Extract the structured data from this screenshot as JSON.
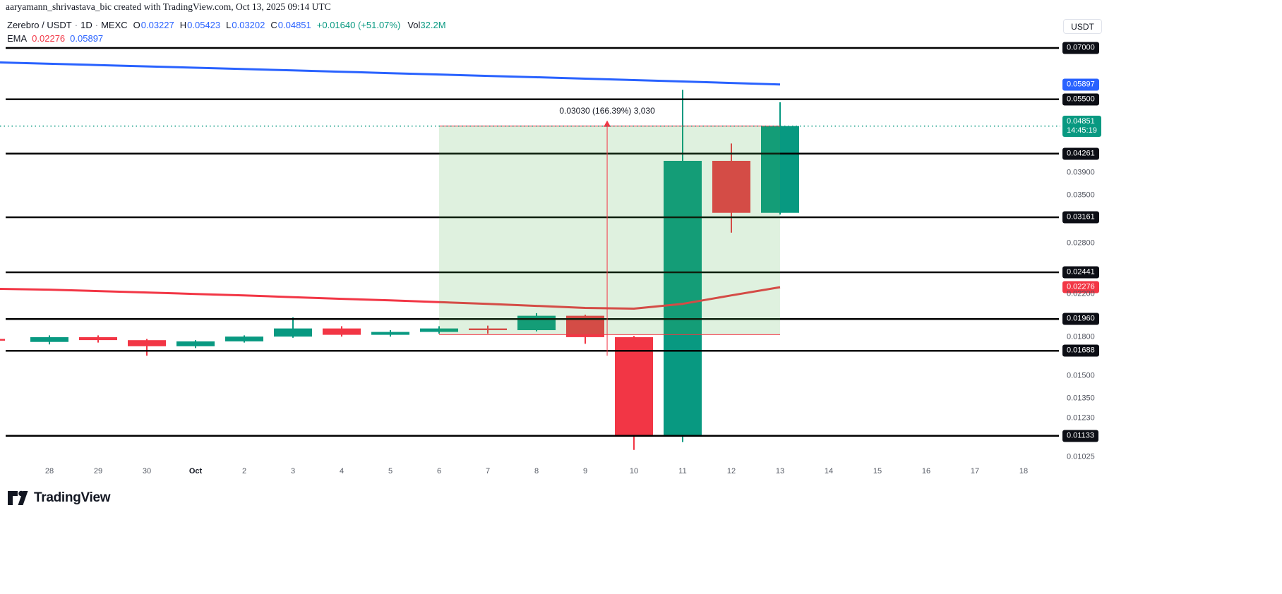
{
  "attribution": "aaryamann_shrivastava_bic created with TradingView.com, Oct 13, 2025 09:14 UTC",
  "legend": {
    "symbol": "Zerebro / USDT",
    "sep": "·",
    "interval": "1D",
    "exchange": "MEXC",
    "ohlc": {
      "o_label": "O",
      "o": "0.03227",
      "h_label": "H",
      "h": "0.05423",
      "l_label": "L",
      "l": "0.03202",
      "c_label": "C",
      "c": "0.04851",
      "change": "+0.01640 (+51.07%)"
    },
    "volume_label": "Vol",
    "volume": "32.2M",
    "ema_label": "EMA",
    "ema_red": "0.02276",
    "ema_blue": "0.05897"
  },
  "currency_button": "USDT",
  "price_axis": {
    "labels": [
      {
        "text": "0.07000",
        "price": 0.07,
        "style": "black"
      },
      {
        "text": "0.05897",
        "price": 0.05897,
        "style": "blue"
      },
      {
        "text": "0.05500",
        "price": 0.055,
        "style": "black"
      },
      {
        "text": "0.04851",
        "price": 0.04851,
        "style": "teal",
        "sub": "14:45:19"
      },
      {
        "text": "0.04261",
        "price": 0.04261,
        "style": "black"
      },
      {
        "text": "0.03900",
        "price": 0.039,
        "style": "plain"
      },
      {
        "text": "0.03500",
        "price": 0.035,
        "style": "plain"
      },
      {
        "text": "0.03161",
        "price": 0.03161,
        "style": "black"
      },
      {
        "text": "0.02800",
        "price": 0.028,
        "style": "plain"
      },
      {
        "text": "0.02441",
        "price": 0.02441,
        "style": "black"
      },
      {
        "text": "0.02276",
        "price": 0.02276,
        "style": "red"
      },
      {
        "text": "0.02200",
        "price": 0.022,
        "style": "plain"
      },
      {
        "text": "0.01960",
        "price": 0.0196,
        "style": "black"
      },
      {
        "text": "0.01800",
        "price": 0.018,
        "style": "plain"
      },
      {
        "text": "0.01688",
        "price": 0.01688,
        "style": "black"
      },
      {
        "text": "0.01500",
        "price": 0.015,
        "style": "plain"
      },
      {
        "text": "0.01350",
        "price": 0.0135,
        "style": "plain"
      },
      {
        "text": "0.01230",
        "price": 0.0123,
        "style": "plain"
      },
      {
        "text": "0.01133",
        "price": 0.01133,
        "style": "black"
      },
      {
        "text": "0.01025",
        "price": 0.01025,
        "style": "plain"
      }
    ]
  },
  "time_axis": {
    "labels": [
      {
        "text": "28"
      },
      {
        "text": "29"
      },
      {
        "text": "30"
      },
      {
        "text": "Oct",
        "month": true
      },
      {
        "text": "2"
      },
      {
        "text": "3"
      },
      {
        "text": "4"
      },
      {
        "text": "5"
      },
      {
        "text": "6"
      },
      {
        "text": "7"
      },
      {
        "text": "8"
      },
      {
        "text": "9"
      },
      {
        "text": "10"
      },
      {
        "text": "11"
      },
      {
        "text": "12"
      },
      {
        "text": "13"
      },
      {
        "text": "14"
      },
      {
        "text": "15"
      },
      {
        "text": "16"
      },
      {
        "text": "17"
      },
      {
        "text": "18"
      }
    ]
  },
  "logo": {
    "text": "TradingView"
  },
  "colors": {
    "up": "#089981",
    "down": "#F23645",
    "ema_blue": "#2962FF",
    "ema_red": "#F23645",
    "level_line": "#000000",
    "zone_fill": "rgba(76,175,80,0.18)",
    "tool_line": "#F23645",
    "badge_black": "#0C0E15",
    "badge_blue": "#2962FF",
    "badge_teal": "#089981",
    "badge_red": "#F23645"
  },
  "chart_data": {
    "type": "candlestick",
    "title": "Zerebro / USDT · 1D · MEXC",
    "scale": "logarithmic",
    "ylim": [
      0.01,
      0.088
    ],
    "current_price": 0.04851,
    "countdown": "14:45:19",
    "horizontal_levels": [
      0.07,
      0.055,
      0.04261,
      0.03161,
      0.02441,
      0.0196,
      0.01688,
      0.01133
    ],
    "candles": [
      {
        "date": "Sep 28",
        "o": 0.0176,
        "h": 0.01815,
        "l": 0.0174,
        "c": 0.018
      },
      {
        "date": "Sep 29",
        "o": 0.018,
        "h": 0.01815,
        "l": 0.01755,
        "c": 0.01775
      },
      {
        "date": "Sep 30",
        "o": 0.01775,
        "h": 0.01785,
        "l": 0.0165,
        "c": 0.01725
      },
      {
        "date": "Oct 1",
        "o": 0.01725,
        "h": 0.01775,
        "l": 0.0171,
        "c": 0.01765
      },
      {
        "date": "Oct 2",
        "o": 0.01765,
        "h": 0.01815,
        "l": 0.01755,
        "c": 0.01805
      },
      {
        "date": "Oct 3",
        "o": 0.01805,
        "h": 0.01975,
        "l": 0.01795,
        "c": 0.01875
      },
      {
        "date": "Oct 4",
        "o": 0.01875,
        "h": 0.01895,
        "l": 0.01805,
        "c": 0.0182
      },
      {
        "date": "Oct 5",
        "o": 0.0182,
        "h": 0.0186,
        "l": 0.01805,
        "c": 0.01845
      },
      {
        "date": "Oct 6",
        "o": 0.01845,
        "h": 0.01895,
        "l": 0.0183,
        "c": 0.01875
      },
      {
        "date": "Oct 7",
        "o": 0.01875,
        "h": 0.019,
        "l": 0.0183,
        "c": 0.0186
      },
      {
        "date": "Oct 8",
        "o": 0.0186,
        "h": 0.02015,
        "l": 0.0185,
        "c": 0.0199
      },
      {
        "date": "Oct 9",
        "o": 0.0199,
        "h": 0.02,
        "l": 0.01745,
        "c": 0.018
      },
      {
        "date": "Oct 10",
        "o": 0.018,
        "h": 0.0181,
        "l": 0.0106,
        "c": 0.01133
      },
      {
        "date": "Oct 11",
        "o": 0.01133,
        "h": 0.0575,
        "l": 0.011,
        "c": 0.0412
      },
      {
        "date": "Oct 12",
        "o": 0.0412,
        "h": 0.0447,
        "l": 0.0294,
        "c": 0.03227
      },
      {
        "date": "Oct 13",
        "o": 0.03227,
        "h": 0.05423,
        "l": 0.03202,
        "c": 0.04851
      }
    ],
    "ema": {
      "blue": {
        "current": 0.05897,
        "left_edge": 0.0654,
        "values": [
          0.065,
          0.0646,
          0.0642,
          0.0638,
          0.0634,
          0.063,
          0.0626,
          0.0622,
          0.0618,
          0.0614,
          0.061,
          0.0606,
          0.0602,
          0.0598,
          0.0594,
          0.05897
        ]
      },
      "red": {
        "current": 0.02276,
        "left_edge": 0.02258,
        "values": [
          0.0225,
          0.02235,
          0.0222,
          0.02205,
          0.0219,
          0.02172,
          0.02155,
          0.0214,
          0.02122,
          0.02105,
          0.02085,
          0.02065,
          0.02058,
          0.02105,
          0.0219,
          0.02276
        ]
      }
    },
    "position_tool": {
      "start_date": "Oct 6",
      "end_date": "Oct 13",
      "x_start_index": 8,
      "x_end_index": 15,
      "entry_price": 0.01821,
      "target_price": 0.04851,
      "label": "0.03030 (166.39%) 3,030",
      "arrow_x_index": 11.45,
      "line_low_price": 0.0165
    },
    "left_partial": {
      "price": 0.01778
    }
  }
}
